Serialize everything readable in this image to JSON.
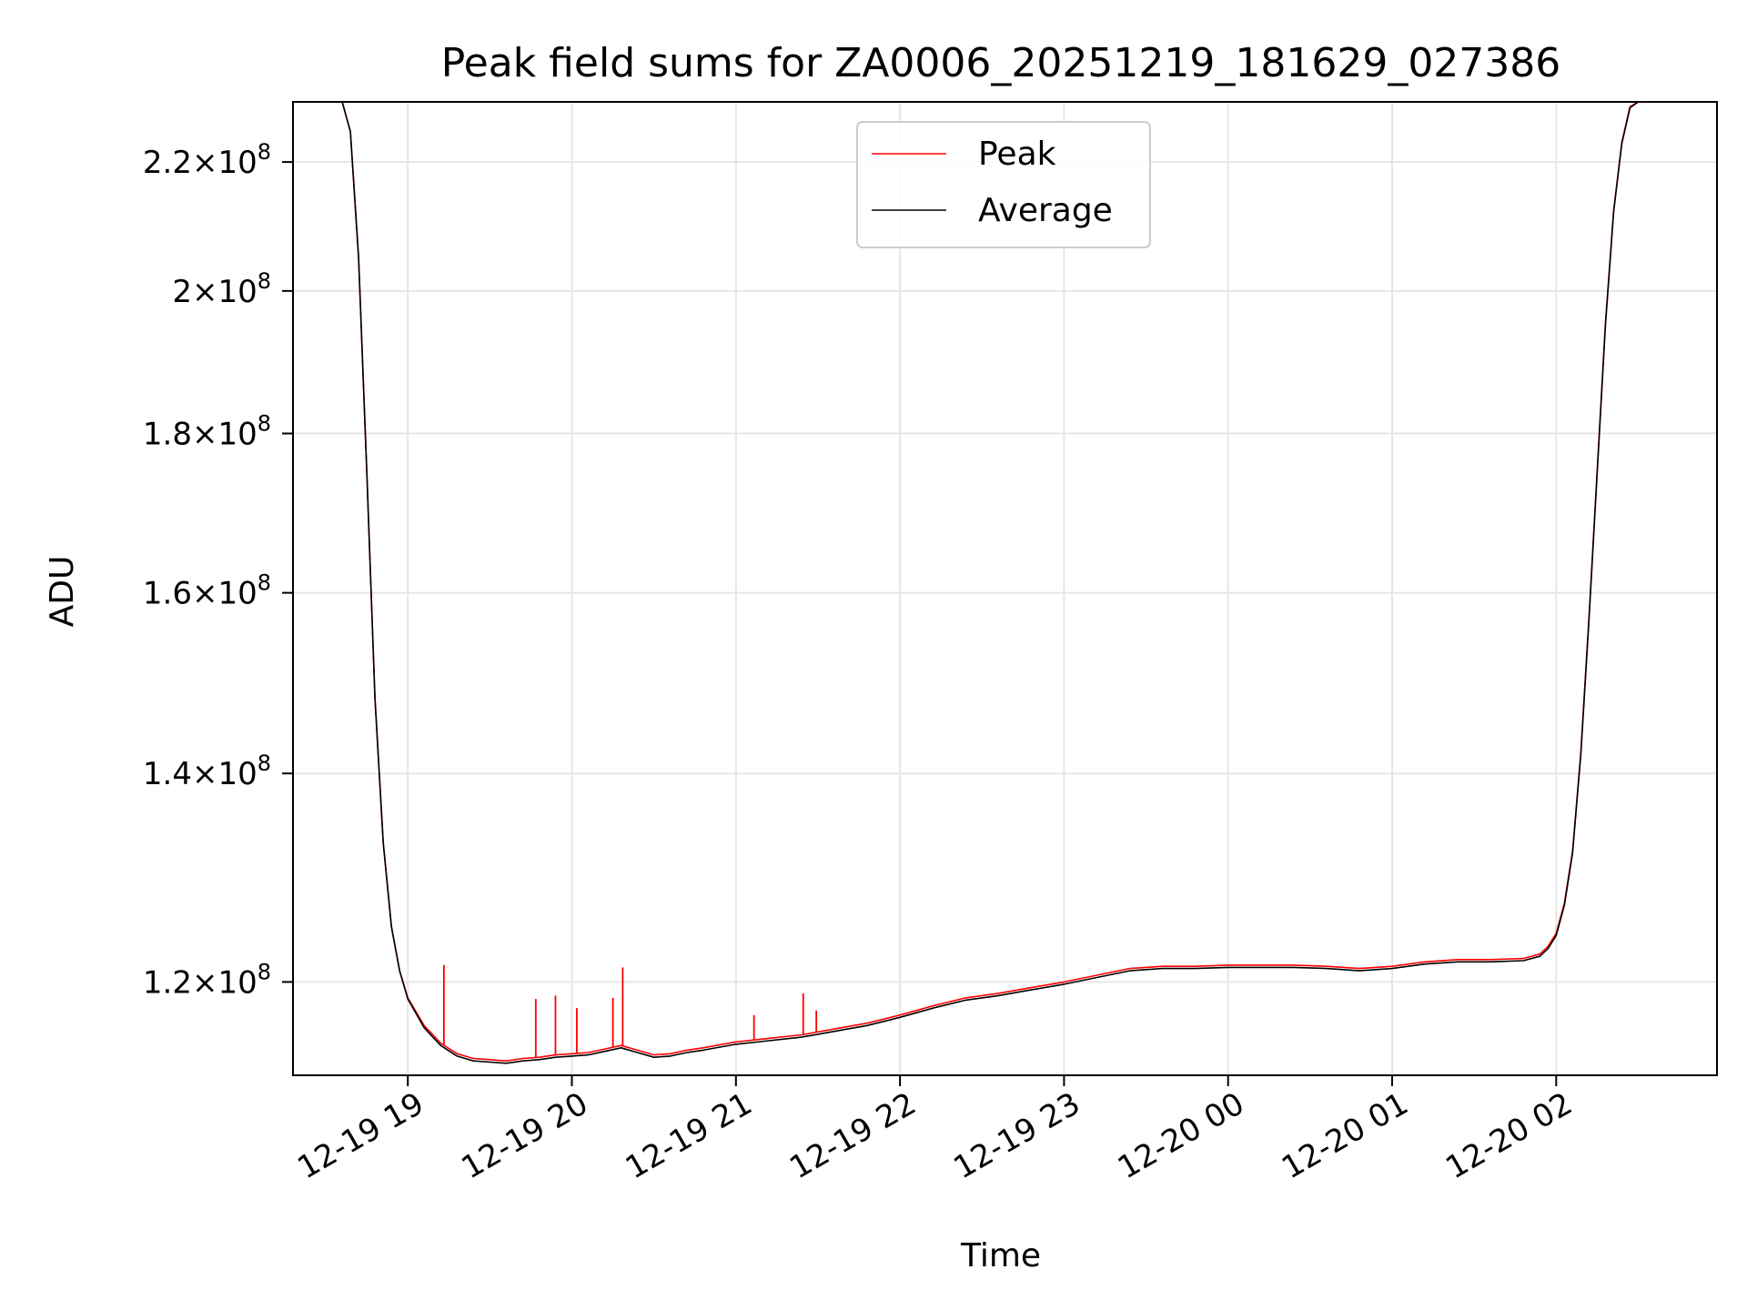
{
  "chart_data": {
    "type": "line",
    "title": "Peak field sums for ZA0006_20251219_181629_027386",
    "xlabel": "Time",
    "ylabel": "ADU",
    "yscale": "log",
    "grid": true,
    "legend_position": "top-center",
    "x_ticks": [
      "12-19 19",
      "12-19 20",
      "12-19 21",
      "12-19 22",
      "12-19 23",
      "12-20 00",
      "12-20 01",
      "12-20 02"
    ],
    "x_tick_hours": [
      19,
      20,
      21,
      22,
      23,
      24,
      25,
      26
    ],
    "xlim_hours": [
      18.3,
      26.98
    ],
    "ylim": [
      112000000,
      230000000
    ],
    "y_ticks": [
      {
        "value": 120000000,
        "mantissa": "1.2",
        "exp": "8"
      },
      {
        "value": 140000000,
        "mantissa": "1.4",
        "exp": "8"
      },
      {
        "value": 160000000,
        "mantissa": "1.6",
        "exp": "8"
      },
      {
        "value": 180000000,
        "mantissa": "1.8",
        "exp": "8"
      },
      {
        "value": 200000000,
        "mantissa": "2",
        "exp": "8"
      },
      {
        "value": 220000000,
        "mantissa": "2.2",
        "exp": "8"
      }
    ],
    "x_hours": [
      18.6,
      18.65,
      18.7,
      18.75,
      18.8,
      18.85,
      18.9,
      18.95,
      19.0,
      19.1,
      19.2,
      19.3,
      19.4,
      19.5,
      19.6,
      19.7,
      19.8,
      19.9,
      20.0,
      20.1,
      20.2,
      20.3,
      20.4,
      20.5,
      20.6,
      20.7,
      20.8,
      21.0,
      21.2,
      21.4,
      21.6,
      21.8,
      22.0,
      22.2,
      22.4,
      22.6,
      22.8,
      23.0,
      23.2,
      23.4,
      23.6,
      23.8,
      24.0,
      24.2,
      24.4,
      24.6,
      24.8,
      25.0,
      25.2,
      25.4,
      25.6,
      25.8,
      25.9,
      25.95,
      26.0,
      26.05,
      26.1,
      26.15,
      26.2,
      26.25,
      26.3,
      26.35,
      26.4,
      26.45,
      26.5,
      26.55,
      26.6
    ],
    "series": [
      {
        "name": "Average",
        "color": "#000000",
        "values": [
          230000000,
          225000000,
          205000000,
          175000000,
          148000000,
          133000000,
          125000000,
          121000000,
          118500000,
          116000000,
          114500000,
          113600000,
          113200000,
          113100000,
          113000000,
          113200000,
          113300000,
          113500000,
          113600000,
          113700000,
          114000000,
          114300000,
          113900000,
          113500000,
          113600000,
          113900000,
          114100000,
          114600000,
          114900000,
          115200000,
          115700000,
          116200000,
          116900000,
          117700000,
          118400000,
          118800000,
          119300000,
          119800000,
          120400000,
          121000000,
          121200000,
          121200000,
          121300000,
          121300000,
          121300000,
          121200000,
          121000000,
          121200000,
          121600000,
          121800000,
          121800000,
          121900000,
          122300000,
          123000000,
          124200000,
          127000000,
          132000000,
          142000000,
          157000000,
          175000000,
          195000000,
          212000000,
          223000000,
          229000000,
          230000000,
          230000000,
          230000000
        ]
      },
      {
        "name": "Peak",
        "color": "#ff0000",
        "values": [
          230000000,
          225000000,
          205000000,
          175000000,
          148000000,
          133000000,
          125000000,
          121000000,
          118600000,
          116200000,
          114700000,
          113800000,
          113400000,
          113300000,
          113200000,
          113400000,
          113500000,
          113700000,
          113800000,
          113900000,
          114200000,
          114500000,
          114100000,
          113700000,
          113800000,
          114100000,
          114300000,
          114800000,
          115100000,
          115400000,
          115900000,
          116400000,
          117100000,
          117900000,
          118600000,
          119000000,
          119500000,
          120000000,
          120600000,
          121200000,
          121400000,
          121400000,
          121500000,
          121500000,
          121500000,
          121400000,
          121200000,
          121400000,
          121800000,
          122000000,
          122000000,
          122100000,
          122500000,
          123200000,
          124400000,
          127200000,
          132200000,
          142200000,
          157200000,
          175200000,
          195200000,
          212200000,
          223200000,
          229200000,
          230000000,
          230000000,
          230000000
        ]
      }
    ],
    "peak_spikes": [
      {
        "x_hour": 19.22,
        "value": 121500000
      },
      {
        "x_hour": 19.78,
        "value": 118500000
      },
      {
        "x_hour": 19.9,
        "value": 118800000
      },
      {
        "x_hour": 20.03,
        "value": 117700000
      },
      {
        "x_hour": 20.25,
        "value": 118600000
      },
      {
        "x_hour": 20.31,
        "value": 121300000
      },
      {
        "x_hour": 21.11,
        "value": 117100000
      },
      {
        "x_hour": 21.41,
        "value": 119000000
      },
      {
        "x_hour": 21.49,
        "value": 117500000
      }
    ]
  }
}
